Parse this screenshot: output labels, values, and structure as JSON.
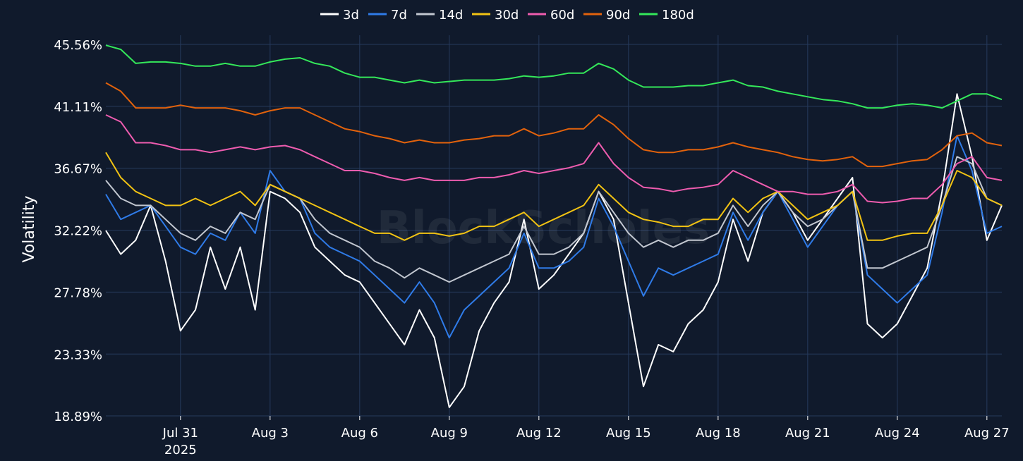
{
  "chart_data": {
    "type": "line",
    "title": "",
    "xlabel": "",
    "ylabel": "Volatility",
    "x_ticks": [
      "Jul 31",
      "Aug 3",
      "Aug 6",
      "Aug 9",
      "Aug 12",
      "Aug 15",
      "Aug 18",
      "Aug 21",
      "Aug 24",
      "Aug 27"
    ],
    "x_year_label": "2025",
    "x_range": [
      "2025-07-28 12:00",
      "2025-08-27 12:00"
    ],
    "y_ticks": [
      "18.89%",
      "23.33%",
      "27.78%",
      "32.22%",
      "36.67%",
      "41.11%",
      "45.56%"
    ],
    "ylim": [
      18.89,
      45.56
    ],
    "grid": true,
    "legend_position": "top-center",
    "watermark": "BlockScholes",
    "colors": {
      "background": "#101a2c",
      "grid": "#263a5c",
      "text": "#ffffff"
    },
    "series": [
      {
        "name": "3d",
        "color": "#ffffff",
        "x": [
          "07-28 12:00",
          "07-29",
          "07-29 12:00",
          "07-30",
          "07-30 12:00",
          "07-31",
          "07-31 12:00",
          "08-01",
          "08-01 12:00",
          "08-02",
          "08-02 12:00",
          "08-03",
          "08-03 12:00",
          "08-04",
          "08-04 12:00",
          "08-05",
          "08-05 12:00",
          "08-06",
          "08-06 12:00",
          "08-07",
          "08-07 12:00",
          "08-08",
          "08-08 12:00",
          "08-09",
          "08-09 12:00",
          "08-10",
          "08-10 12:00",
          "08-11",
          "08-11 12:00",
          "08-12",
          "08-12 12:00",
          "08-13",
          "08-13 12:00",
          "08-14",
          "08-14 12:00",
          "08-15",
          "08-15 12:00",
          "08-16",
          "08-16 12:00",
          "08-17",
          "08-17 12:00",
          "08-18",
          "08-18 12:00",
          "08-19",
          "08-19 12:00",
          "08-20",
          "08-20 12:00",
          "08-21",
          "08-21 12:00",
          "08-22",
          "08-22 12:00",
          "08-23",
          "08-23 12:00",
          "08-24",
          "08-24 12:00",
          "08-25",
          "08-25 12:00",
          "08-26",
          "08-26 12:00",
          "08-27",
          "08-27 12:00"
        ],
        "values": [
          32.2,
          30.5,
          31.5,
          34.0,
          30.0,
          25.0,
          26.5,
          31.0,
          28.0,
          31.0,
          26.5,
          35.0,
          34.5,
          33.5,
          31.0,
          30.0,
          29.0,
          28.5,
          27.0,
          25.5,
          24.0,
          26.5,
          24.5,
          19.5,
          21.0,
          25.0,
          27.0,
          28.5,
          33.0,
          28.0,
          29.0,
          30.5,
          32.0,
          35.0,
          33.0,
          27.0,
          21.0,
          24.0,
          23.5,
          25.5,
          26.5,
          28.5,
          33.0,
          30.0,
          33.5,
          35.0,
          33.5,
          31.5,
          33.0,
          34.5,
          36.0,
          25.5,
          24.5,
          25.5,
          27.5,
          29.5,
          35.0,
          42.0,
          37.5,
          31.5,
          34.0
        ]
      },
      {
        "name": "7d",
        "color": "#2f7be8",
        "x": [
          "07-28 12:00",
          "07-29",
          "07-29 12:00",
          "07-30",
          "07-30 12:00",
          "07-31",
          "07-31 12:00",
          "08-01",
          "08-01 12:00",
          "08-02",
          "08-02 12:00",
          "08-03",
          "08-03 12:00",
          "08-04",
          "08-04 12:00",
          "08-05",
          "08-05 12:00",
          "08-06",
          "08-06 12:00",
          "08-07",
          "08-07 12:00",
          "08-08",
          "08-08 12:00",
          "08-09",
          "08-09 12:00",
          "08-10",
          "08-10 12:00",
          "08-11",
          "08-11 12:00",
          "08-12",
          "08-12 12:00",
          "08-13",
          "08-13 12:00",
          "08-14",
          "08-14 12:00",
          "08-15",
          "08-15 12:00",
          "08-16",
          "08-16 12:00",
          "08-17",
          "08-17 12:00",
          "08-18",
          "08-18 12:00",
          "08-19",
          "08-19 12:00",
          "08-20",
          "08-20 12:00",
          "08-21",
          "08-21 12:00",
          "08-22",
          "08-22 12:00",
          "08-23",
          "08-23 12:00",
          "08-24",
          "08-24 12:00",
          "08-25",
          "08-25 12:00",
          "08-26",
          "08-26 12:00",
          "08-27",
          "08-27 12:00"
        ],
        "values": [
          34.8,
          33.0,
          33.5,
          34.0,
          32.5,
          31.0,
          30.5,
          32.0,
          31.5,
          33.5,
          32.0,
          36.5,
          35.0,
          34.5,
          32.0,
          31.0,
          30.5,
          30.0,
          29.0,
          28.0,
          27.0,
          28.5,
          27.0,
          24.5,
          26.5,
          27.5,
          28.5,
          29.5,
          32.0,
          29.5,
          29.5,
          30.0,
          31.0,
          34.5,
          32.5,
          30.0,
          27.5,
          29.5,
          29.0,
          29.5,
          30.0,
          30.5,
          33.5,
          31.5,
          33.5,
          35.0,
          33.0,
          31.0,
          32.5,
          34.0,
          35.0,
          29.0,
          28.0,
          27.0,
          28.0,
          29.0,
          33.5,
          39.0,
          36.5,
          32.0,
          32.5
        ]
      },
      {
        "name": "14d",
        "color": "#c2c7d0",
        "x": [
          "07-28 12:00",
          "07-29",
          "07-29 12:00",
          "07-30",
          "07-30 12:00",
          "07-31",
          "07-31 12:00",
          "08-01",
          "08-01 12:00",
          "08-02",
          "08-02 12:00",
          "08-03",
          "08-03 12:00",
          "08-04",
          "08-04 12:00",
          "08-05",
          "08-05 12:00",
          "08-06",
          "08-06 12:00",
          "08-07",
          "08-07 12:00",
          "08-08",
          "08-08 12:00",
          "08-09",
          "08-09 12:00",
          "08-10",
          "08-10 12:00",
          "08-11",
          "08-11 12:00",
          "08-12",
          "08-12 12:00",
          "08-13",
          "08-13 12:00",
          "08-14",
          "08-14 12:00",
          "08-15",
          "08-15 12:00",
          "08-16",
          "08-16 12:00",
          "08-17",
          "08-17 12:00",
          "08-18",
          "08-18 12:00",
          "08-19",
          "08-19 12:00",
          "08-20",
          "08-20 12:00",
          "08-21",
          "08-21 12:00",
          "08-22",
          "08-22 12:00",
          "08-23",
          "08-23 12:00",
          "08-24",
          "08-24 12:00",
          "08-25",
          "08-25 12:00",
          "08-26",
          "08-26 12:00",
          "08-27",
          "08-27 12:00"
        ],
        "values": [
          35.8,
          34.5,
          34.0,
          34.0,
          33.0,
          32.0,
          31.5,
          32.5,
          32.0,
          33.5,
          33.0,
          35.5,
          35.0,
          34.5,
          33.0,
          32.0,
          31.5,
          31.0,
          30.0,
          29.5,
          28.8,
          29.5,
          29.0,
          28.5,
          29.0,
          29.5,
          30.0,
          30.5,
          32.5,
          30.5,
          30.5,
          31.0,
          32.0,
          35.0,
          33.5,
          32.0,
          31.0,
          31.5,
          31.0,
          31.5,
          31.5,
          32.0,
          34.0,
          32.5,
          34.0,
          35.0,
          33.5,
          32.5,
          33.0,
          34.0,
          35.0,
          29.5,
          29.5,
          30.0,
          30.5,
          31.0,
          34.0,
          37.5,
          37.0,
          34.5,
          34.0
        ]
      },
      {
        "name": "30d",
        "color": "#f2c313",
        "x": [
          "07-28 12:00",
          "07-29",
          "07-29 12:00",
          "07-30",
          "07-30 12:00",
          "07-31",
          "07-31 12:00",
          "08-01",
          "08-01 12:00",
          "08-02",
          "08-02 12:00",
          "08-03",
          "08-03 12:00",
          "08-04",
          "08-04 12:00",
          "08-05",
          "08-05 12:00",
          "08-06",
          "08-06 12:00",
          "08-07",
          "08-07 12:00",
          "08-08",
          "08-08 12:00",
          "08-09",
          "08-09 12:00",
          "08-10",
          "08-10 12:00",
          "08-11",
          "08-11 12:00",
          "08-12",
          "08-12 12:00",
          "08-13",
          "08-13 12:00",
          "08-14",
          "08-14 12:00",
          "08-15",
          "08-15 12:00",
          "08-16",
          "08-16 12:00",
          "08-17",
          "08-17 12:00",
          "08-18",
          "08-18 12:00",
          "08-19",
          "08-19 12:00",
          "08-20",
          "08-20 12:00",
          "08-21",
          "08-21 12:00",
          "08-22",
          "08-22 12:00",
          "08-23",
          "08-23 12:00",
          "08-24",
          "08-24 12:00",
          "08-25",
          "08-25 12:00",
          "08-26",
          "08-26 12:00",
          "08-27",
          "08-27 12:00"
        ],
        "values": [
          37.8,
          36.0,
          35.0,
          34.5,
          34.0,
          34.0,
          34.5,
          34.0,
          34.5,
          35.0,
          34.0,
          35.5,
          35.0,
          34.5,
          34.0,
          33.5,
          33.0,
          32.5,
          32.0,
          32.0,
          31.5,
          32.0,
          32.0,
          31.8,
          32.0,
          32.5,
          32.5,
          33.0,
          33.5,
          32.5,
          33.0,
          33.5,
          34.0,
          35.5,
          34.5,
          33.5,
          33.0,
          32.8,
          32.5,
          32.5,
          33.0,
          33.0,
          34.5,
          33.5,
          34.5,
          35.0,
          34.0,
          33.0,
          33.5,
          34.0,
          35.0,
          31.5,
          31.5,
          31.8,
          32.0,
          32.0,
          34.0,
          36.5,
          36.0,
          34.5,
          34.0
        ]
      },
      {
        "name": "60d",
        "color": "#ee5caf",
        "x": [
          "07-28 12:00",
          "07-29",
          "07-29 12:00",
          "07-30",
          "07-30 12:00",
          "07-31",
          "07-31 12:00",
          "08-01",
          "08-01 12:00",
          "08-02",
          "08-02 12:00",
          "08-03",
          "08-03 12:00",
          "08-04",
          "08-04 12:00",
          "08-05",
          "08-05 12:00",
          "08-06",
          "08-06 12:00",
          "08-07",
          "08-07 12:00",
          "08-08",
          "08-08 12:00",
          "08-09",
          "08-09 12:00",
          "08-10",
          "08-10 12:00",
          "08-11",
          "08-11 12:00",
          "08-12",
          "08-12 12:00",
          "08-13",
          "08-13 12:00",
          "08-14",
          "08-14 12:00",
          "08-15",
          "08-15 12:00",
          "08-16",
          "08-16 12:00",
          "08-17",
          "08-17 12:00",
          "08-18",
          "08-18 12:00",
          "08-19",
          "08-19 12:00",
          "08-20",
          "08-20 12:00",
          "08-21",
          "08-21 12:00",
          "08-22",
          "08-22 12:00",
          "08-23",
          "08-23 12:00",
          "08-24",
          "08-24 12:00",
          "08-25",
          "08-25 12:00",
          "08-26",
          "08-26 12:00",
          "08-27",
          "08-27 12:00"
        ],
        "values": [
          40.5,
          40.0,
          38.5,
          38.5,
          38.3,
          38.0,
          38.0,
          37.8,
          38.0,
          38.2,
          38.0,
          38.2,
          38.3,
          38.0,
          37.5,
          37.0,
          36.5,
          36.5,
          36.3,
          36.0,
          35.8,
          36.0,
          35.8,
          35.8,
          35.8,
          36.0,
          36.0,
          36.2,
          36.5,
          36.3,
          36.5,
          36.7,
          37.0,
          38.5,
          37.0,
          36.0,
          35.3,
          35.2,
          35.0,
          35.2,
          35.3,
          35.5,
          36.5,
          36.0,
          35.5,
          35.0,
          35.0,
          34.8,
          34.8,
          35.0,
          35.5,
          34.3,
          34.2,
          34.3,
          34.5,
          34.5,
          35.5,
          37.0,
          37.5,
          36.0,
          35.8
        ]
      },
      {
        "name": "90d",
        "color": "#e2620c",
        "x": [
          "07-28 12:00",
          "07-29",
          "07-29 12:00",
          "07-30",
          "07-30 12:00",
          "07-31",
          "07-31 12:00",
          "08-01",
          "08-01 12:00",
          "08-02",
          "08-02 12:00",
          "08-03",
          "08-03 12:00",
          "08-04",
          "08-04 12:00",
          "08-05",
          "08-05 12:00",
          "08-06",
          "08-06 12:00",
          "08-07",
          "08-07 12:00",
          "08-08",
          "08-08 12:00",
          "08-09",
          "08-09 12:00",
          "08-10",
          "08-10 12:00",
          "08-11",
          "08-11 12:00",
          "08-12",
          "08-12 12:00",
          "08-13",
          "08-13 12:00",
          "08-14",
          "08-14 12:00",
          "08-15",
          "08-15 12:00",
          "08-16",
          "08-16 12:00",
          "08-17",
          "08-17 12:00",
          "08-18",
          "08-18 12:00",
          "08-19",
          "08-19 12:00",
          "08-20",
          "08-20 12:00",
          "08-21",
          "08-21 12:00",
          "08-22",
          "08-22 12:00",
          "08-23",
          "08-23 12:00",
          "08-24",
          "08-24 12:00",
          "08-25",
          "08-25 12:00",
          "08-26",
          "08-26 12:00",
          "08-27",
          "08-27 12:00"
        ],
        "values": [
          42.8,
          42.2,
          41.0,
          41.0,
          41.0,
          41.2,
          41.0,
          41.0,
          41.0,
          40.8,
          40.5,
          40.8,
          41.0,
          41.0,
          40.5,
          40.0,
          39.5,
          39.3,
          39.0,
          38.8,
          38.5,
          38.7,
          38.5,
          38.5,
          38.7,
          38.8,
          39.0,
          39.0,
          39.5,
          39.0,
          39.2,
          39.5,
          39.5,
          40.5,
          39.8,
          38.8,
          38.0,
          37.8,
          37.8,
          38.0,
          38.0,
          38.2,
          38.5,
          38.2,
          38.0,
          37.8,
          37.5,
          37.3,
          37.2,
          37.3,
          37.5,
          36.8,
          36.8,
          37.0,
          37.2,
          37.3,
          38.0,
          39.0,
          39.2,
          38.5,
          38.3
        ]
      },
      {
        "name": "180d",
        "color": "#34e85a",
        "x": [
          "07-28 12:00",
          "07-29",
          "07-29 12:00",
          "07-30",
          "07-30 12:00",
          "07-31",
          "07-31 12:00",
          "08-01",
          "08-01 12:00",
          "08-02",
          "08-02 12:00",
          "08-03",
          "08-03 12:00",
          "08-04",
          "08-04 12:00",
          "08-05",
          "08-05 12:00",
          "08-06",
          "08-06 12:00",
          "08-07",
          "08-07 12:00",
          "08-08",
          "08-08 12:00",
          "08-09",
          "08-09 12:00",
          "08-10",
          "08-10 12:00",
          "08-11",
          "08-11 12:00",
          "08-12",
          "08-12 12:00",
          "08-13",
          "08-13 12:00",
          "08-14",
          "08-14 12:00",
          "08-15",
          "08-15 12:00",
          "08-16",
          "08-16 12:00",
          "08-17",
          "08-17 12:00",
          "08-18",
          "08-18 12:00",
          "08-19",
          "08-19 12:00",
          "08-20",
          "08-20 12:00",
          "08-21",
          "08-21 12:00",
          "08-22",
          "08-22 12:00",
          "08-23",
          "08-23 12:00",
          "08-24",
          "08-24 12:00",
          "08-25",
          "08-25 12:00",
          "08-26",
          "08-26 12:00",
          "08-27",
          "08-27 12:00"
        ],
        "values": [
          45.5,
          45.2,
          44.2,
          44.3,
          44.3,
          44.2,
          44.0,
          44.0,
          44.2,
          44.0,
          44.0,
          44.3,
          44.5,
          44.6,
          44.2,
          44.0,
          43.5,
          43.2,
          43.2,
          43.0,
          42.8,
          43.0,
          42.8,
          42.9,
          43.0,
          43.0,
          43.0,
          43.1,
          43.3,
          43.2,
          43.3,
          43.5,
          43.5,
          44.2,
          43.8,
          43.0,
          42.5,
          42.5,
          42.5,
          42.6,
          42.6,
          42.8,
          43.0,
          42.6,
          42.5,
          42.2,
          42.0,
          41.8,
          41.6,
          41.5,
          41.3,
          41.0,
          41.0,
          41.2,
          41.3,
          41.2,
          41.0,
          41.5,
          42.0,
          42.0,
          41.6
        ]
      }
    ]
  }
}
